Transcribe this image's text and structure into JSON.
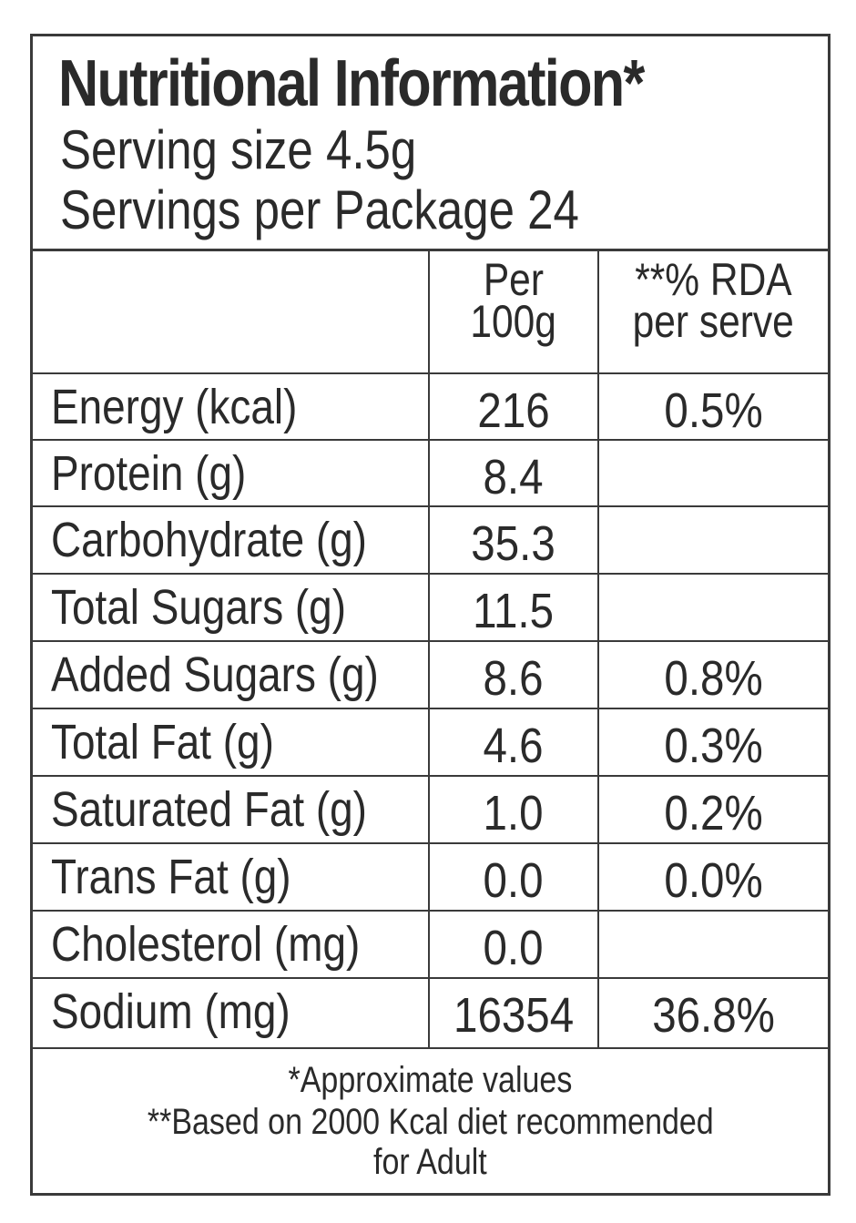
{
  "header": {
    "title": "Nutritional Information*",
    "serving_size": "Serving size 4.5g",
    "servings_per_package": "Servings per Package 24"
  },
  "columns": {
    "per_100g_line1": "Per",
    "per_100g_line2": "100g",
    "rda_line1": "**% RDA",
    "rda_line2": "per serve"
  },
  "rows": [
    {
      "label": "Energy (kcal)",
      "per100g": "216",
      "rda": "0.5%"
    },
    {
      "label": "Protein (g)",
      "per100g": "8.4",
      "rda": ""
    },
    {
      "label": "Carbohydrate (g)",
      "per100g": "35.3",
      "rda": ""
    },
    {
      "label": "Total Sugars (g)",
      "per100g": "11.5",
      "rda": ""
    },
    {
      "label": "Added Sugars (g)",
      "per100g": "8.6",
      "rda": "0.8%"
    },
    {
      "label": "Total Fat (g)",
      "per100g": "4.6",
      "rda": "0.3%"
    },
    {
      "label": "Saturated Fat (g)",
      "per100g": "1.0",
      "rda": "0.2%"
    },
    {
      "label": "Trans Fat (g)",
      "per100g": "0.0",
      "rda": "0.0%"
    },
    {
      "label": "Cholesterol (mg)",
      "per100g": "0.0",
      "rda": ""
    },
    {
      "label": "Sodium (mg)",
      "per100g": "16354",
      "rda": "36.8%"
    }
  ],
  "footer": {
    "note1": "*Approximate values",
    "note2": "**Based on 2000 Kcal diet recommended",
    "note3": "for Adult"
  }
}
